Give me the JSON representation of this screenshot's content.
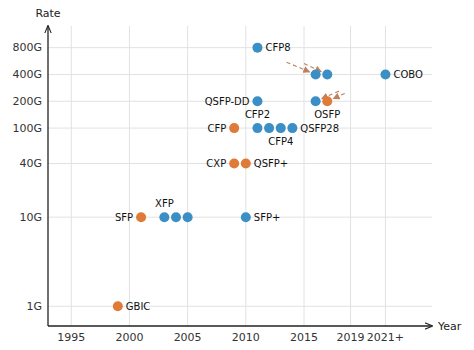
{
  "chart_data": {
    "type": "scatter",
    "xlabel": "Year",
    "ylabel": "Rate",
    "log": "y",
    "grid": true,
    "xlim": [
      1993,
      2026
    ],
    "ylim": [
      0.6,
      1400
    ],
    "xticks": [
      1995,
      2000,
      2005,
      2010,
      2015,
      2019,
      {
        "value": 2022,
        "label": "2021+"
      }
    ],
    "yticks": [
      {
        "value": 1,
        "label": "1G"
      },
      {
        "value": 10,
        "label": "10G"
      },
      {
        "value": 40,
        "label": "40G"
      },
      {
        "value": 100,
        "label": "100G"
      },
      {
        "value": 200,
        "label": "200G"
      },
      {
        "value": 400,
        "label": "400G"
      },
      {
        "value": 800,
        "label": "800G"
      }
    ],
    "x": [
      1999,
      2001,
      2003,
      2004,
      2005,
      2010,
      2009,
      2010,
      2009,
      2011,
      2012,
      2013,
      2014,
      2011,
      2011,
      2016,
      2017,
      2016,
      2017,
      2022
    ],
    "values": [
      1,
      10,
      10,
      10,
      10,
      10,
      40,
      40,
      100,
      100,
      100,
      100,
      100,
      800,
      200,
      400,
      400,
      200,
      200,
      400
    ],
    "colors": [
      "#e07a38",
      "#e07a38",
      "#3b8fc5",
      "#3b8fc5",
      "#3b8fc5",
      "#3b8fc5",
      "#e07a38",
      "#e07a38",
      "#e07a38",
      "#3b8fc5",
      "#3b8fc5",
      "#3b8fc5",
      "#3b8fc5",
      "#3b8fc5",
      "#3b8fc5",
      "#3b8fc5",
      "#3b8fc5",
      "#3b8fc5",
      "#e07a38",
      "#3b8fc5"
    ],
    "annotations": [
      {
        "text": "GBIC",
        "x": 1999,
        "y": 1
      },
      {
        "text": "SFP",
        "x": 2001,
        "y": 10
      },
      {
        "text": "XFP",
        "x": 2003,
        "y": 10
      },
      {
        "text": "SFP+",
        "x": 2010,
        "y": 10
      },
      {
        "text": "CXP",
        "x": 2009,
        "y": 40
      },
      {
        "text": "QSFP+",
        "x": 2010,
        "y": 40
      },
      {
        "text": "CFP",
        "x": 2009,
        "y": 100
      },
      {
        "text": "CFP2",
        "x": 2011,
        "y": 100
      },
      {
        "text": "CFP4",
        "x": 2013,
        "y": 100
      },
      {
        "text": "QSFP28",
        "x": 2014,
        "y": 100
      },
      {
        "text": "CFP8",
        "x": 2011,
        "y": 800
      },
      {
        "text": "QSFP-DD",
        "x": 2011,
        "y": 200
      },
      {
        "text": "OSFP",
        "x": 2017,
        "y": 200
      },
      {
        "text": "COBO",
        "x": 2022,
        "y": 400
      }
    ],
    "arrows": [
      {
        "from_x": 2013.5,
        "from_y": 550,
        "x": 2016,
        "y": 400,
        "color": "#c08060"
      },
      {
        "from_x": 2015,
        "from_y": 530,
        "x": 2017,
        "y": 400,
        "color": "#c08060"
      },
      {
        "from_x": 2018,
        "from_y": 260,
        "x": 2016,
        "y": 200,
        "color": "#c08060"
      },
      {
        "from_x": 2018.5,
        "from_y": 245,
        "x": 2017,
        "y": 200,
        "color": "#c08060"
      }
    ]
  }
}
